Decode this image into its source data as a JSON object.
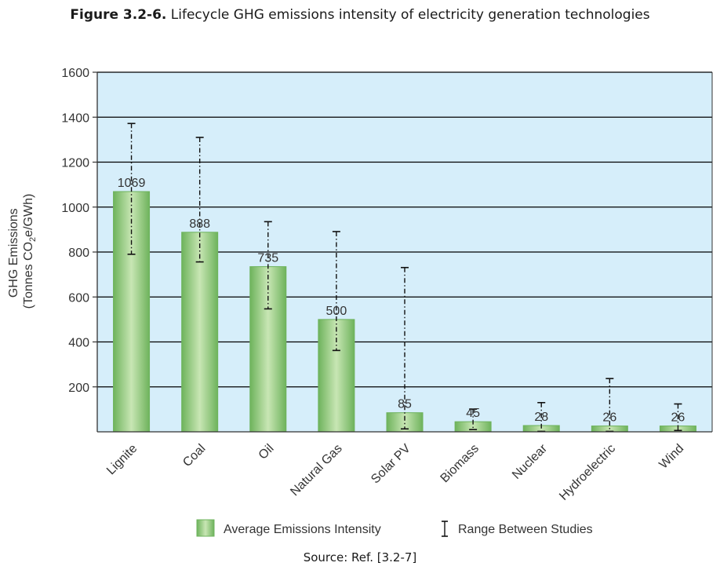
{
  "caption": {
    "label": "Figure 3.2-6.",
    "text": "Lifecycle GHG emissions intensity of electricity generation technologies"
  },
  "source": "Source: Ref. [3.2-7]",
  "colors": {
    "plot_background": "#d6eefa",
    "bar_dark": "#6eb35c",
    "bar_light": "#c8e6b4",
    "grid": "#000000"
  },
  "chart_data": {
    "type": "bar",
    "ylabel_line1": "GHG Emissions",
    "ylabel_line2_prefix": "(Tonnes CO",
    "ylabel_line2_sub": "2",
    "ylabel_line2_suffix": "e/GWh)",
    "ylim": [
      0,
      1600
    ],
    "yticks": [
      200,
      400,
      600,
      800,
      1000,
      1200,
      1400,
      1600
    ],
    "grid": true,
    "legend_position": "bottom",
    "categories": [
      "Lignite",
      "Coal",
      "Oil",
      "Natural Gas",
      "Solar PV",
      "Biomass",
      "Nuclear",
      "Hydroelectric",
      "Wind"
    ],
    "series": [
      {
        "name": "Average Emissions Intensity",
        "values": [
          1069,
          888,
          735,
          500,
          85,
          45,
          28,
          26,
          26
        ]
      }
    ],
    "ranges": {
      "name": "Range Between Studies",
      "low": [
        790,
        756,
        547,
        362,
        13,
        10,
        2,
        2,
        6
      ],
      "high": [
        1372,
        1310,
        935,
        891,
        731,
        101,
        130,
        237,
        124
      ]
    }
  }
}
